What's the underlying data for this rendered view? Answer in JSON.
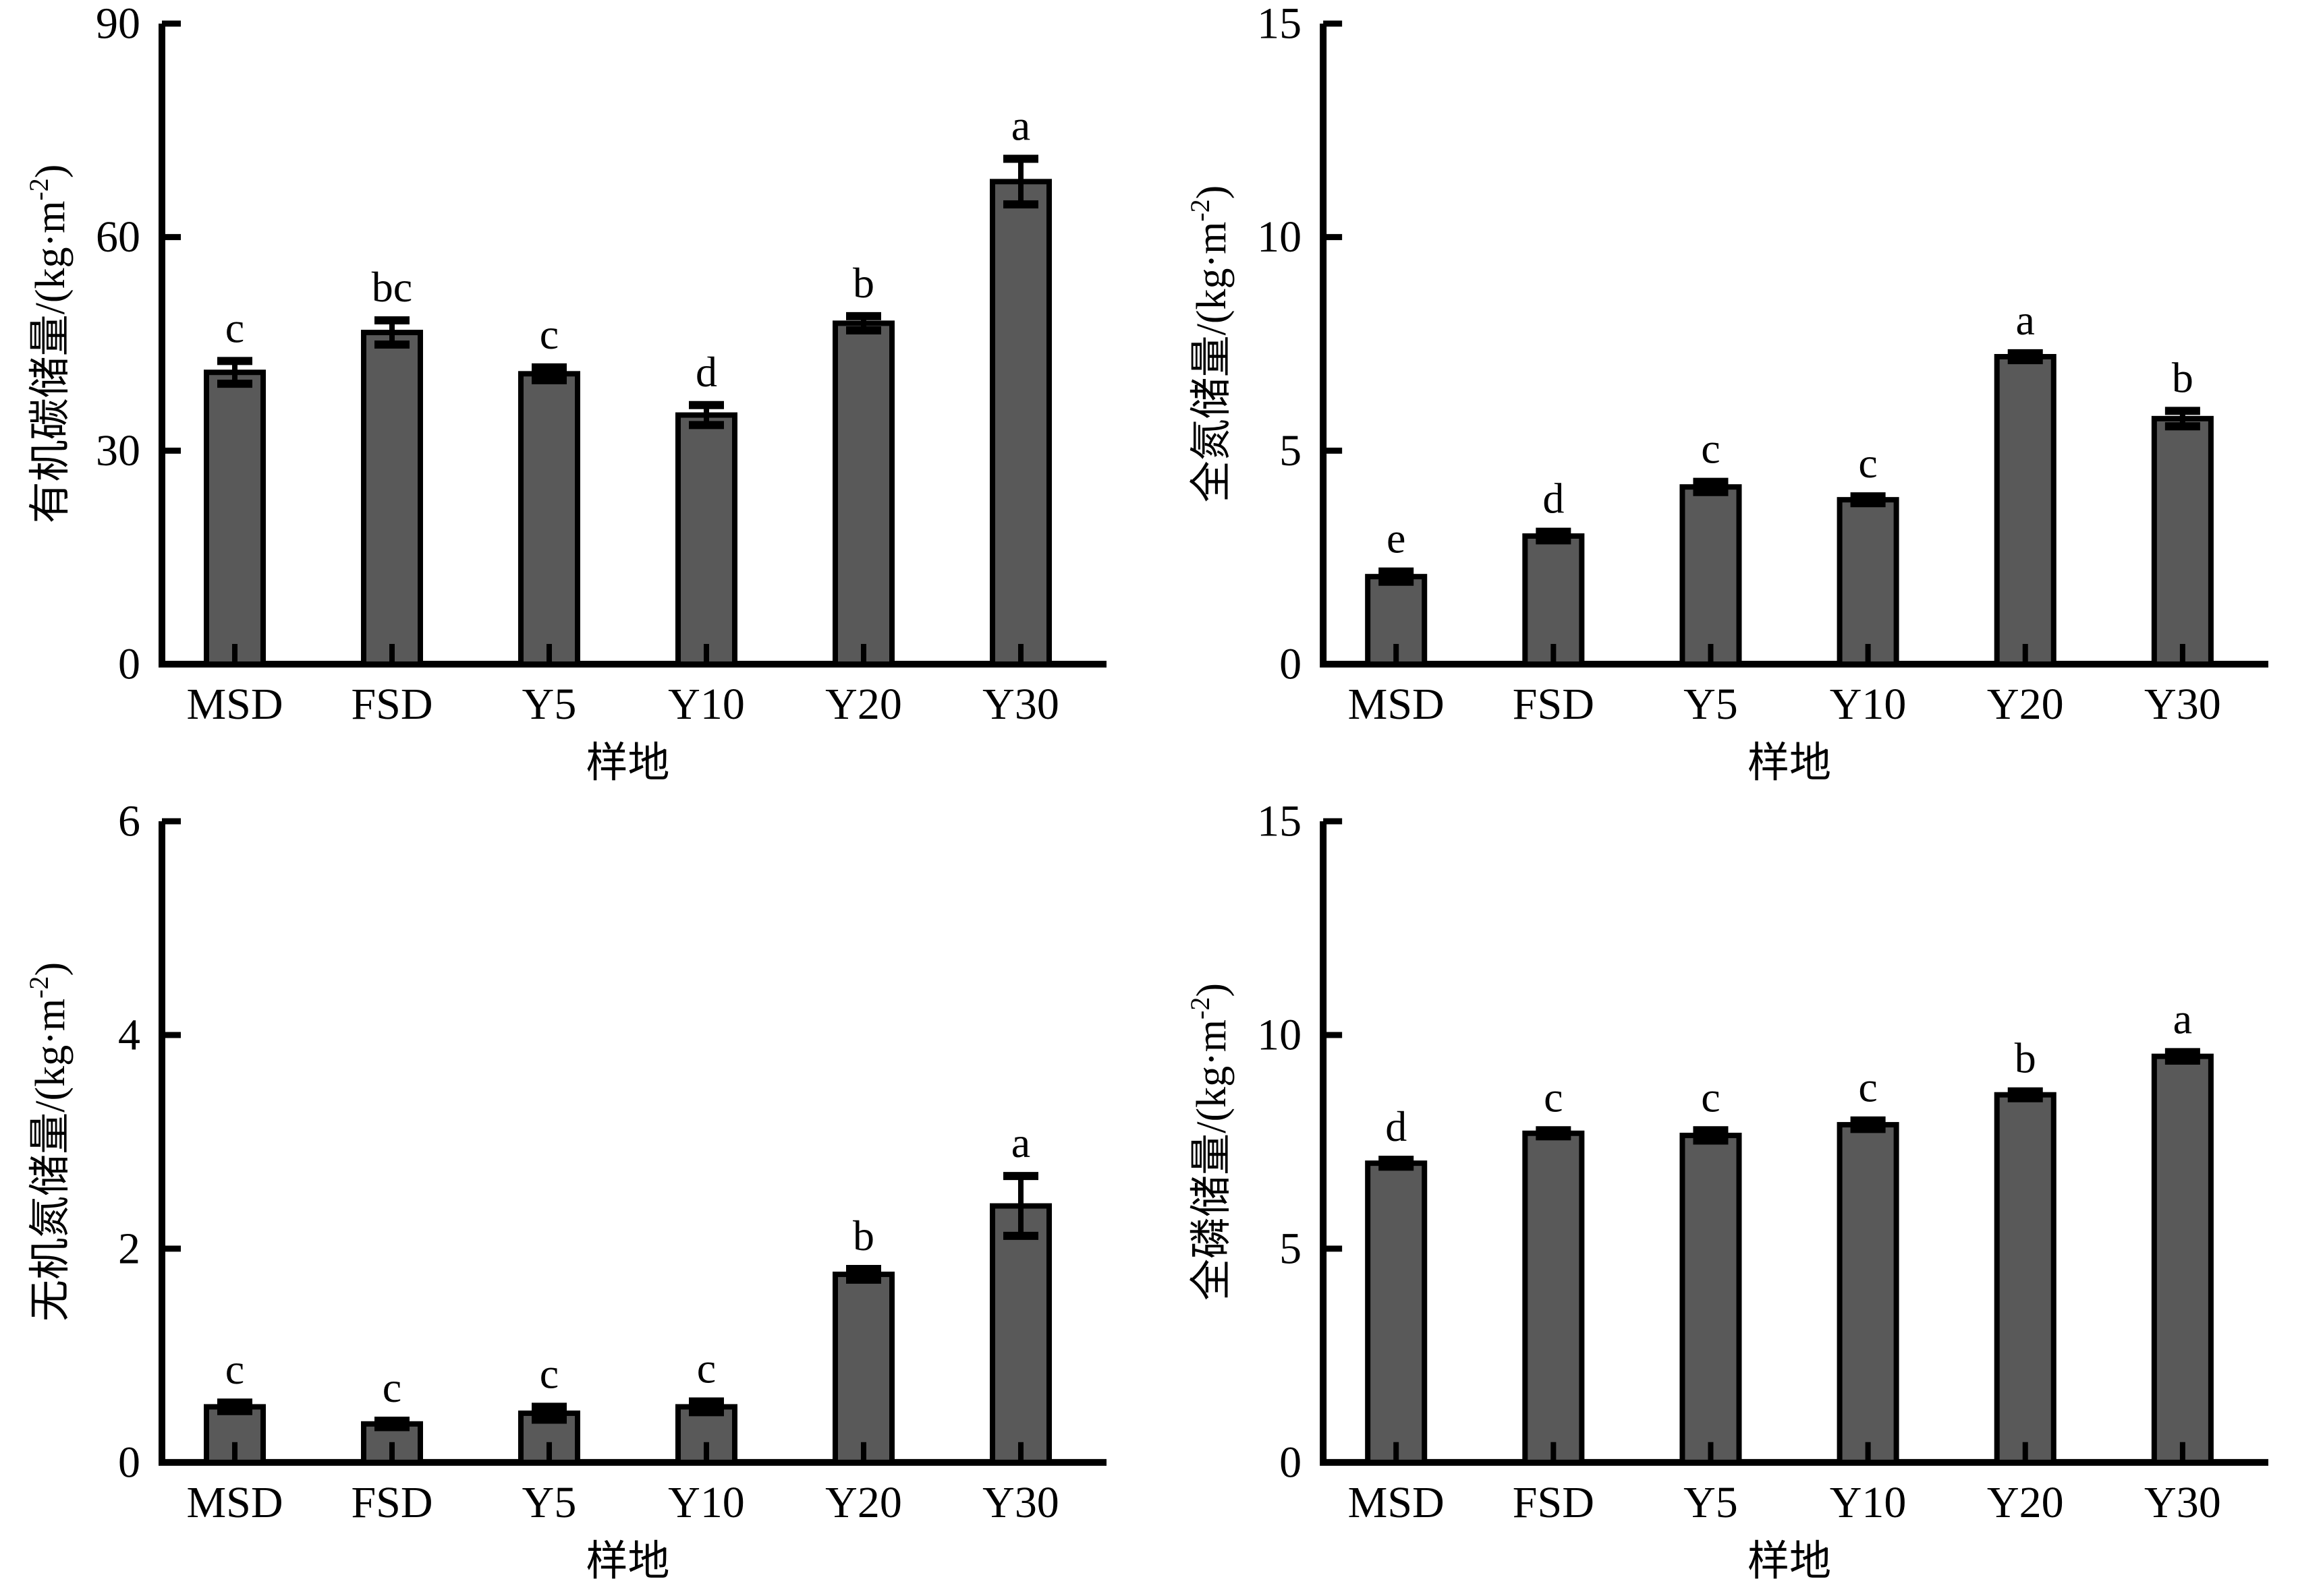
{
  "figure": {
    "background": "#ffffff",
    "bar_fill": "#595959",
    "bar_edge": "#000000",
    "axis_color": "#000000",
    "x_label": "样地",
    "categories": [
      "MSD",
      "FSD",
      "Y5",
      "Y10",
      "Y20",
      "Y30"
    ]
  },
  "chart_data": [
    {
      "type": "bar",
      "panel": "top-left",
      "title": "",
      "ylabel": "有机碳储量/(kg·m⁻²)",
      "ylabel_segments": [
        {
          "text": "有机碳储量/(kg·m",
          "style": "normal"
        },
        {
          "text": "-2",
          "style": "sup"
        },
        {
          "text": ")",
          "style": "normal"
        }
      ],
      "xlabel": "样地",
      "categories": [
        "MSD",
        "FSD",
        "Y5",
        "Y10",
        "Y20",
        "Y30"
      ],
      "values": [
        41.0,
        46.6,
        40.8,
        35.0,
        47.9,
        67.8
      ],
      "errors": [
        1.6,
        1.7,
        0.9,
        1.4,
        1.0,
        3.2
      ],
      "sig_letters": [
        "c",
        "bc",
        "c",
        "d",
        "b",
        "a"
      ],
      "ylim": [
        0,
        90
      ],
      "yticks": [
        0,
        30,
        60,
        90
      ],
      "grid": false,
      "legend": false
    },
    {
      "type": "bar",
      "panel": "top-right",
      "title": "",
      "ylabel": "全氮储量/(kg·m⁻²)",
      "ylabel_segments": [
        {
          "text": "全氮储量/(kg·m",
          "style": "normal"
        },
        {
          "text": "-2",
          "style": "sup"
        },
        {
          "text": ")",
          "style": "normal"
        }
      ],
      "xlabel": "样地",
      "categories": [
        "MSD",
        "FSD",
        "Y5",
        "Y10",
        "Y20",
        "Y30"
      ],
      "values": [
        2.05,
        3.0,
        4.15,
        3.85,
        7.2,
        5.75
      ],
      "errors": [
        0.12,
        0.1,
        0.12,
        0.08,
        0.08,
        0.18
      ],
      "sig_letters": [
        "e",
        "d",
        "c",
        "c",
        "a",
        "b"
      ],
      "ylim": [
        0,
        15
      ],
      "yticks": [
        0,
        5,
        10,
        15
      ],
      "grid": false,
      "legend": false
    },
    {
      "type": "bar",
      "panel": "bottom-left",
      "title": "",
      "ylabel": "无机氮储量/(kg·m⁻²)",
      "ylabel_segments": [
        {
          "text": "无机氮储量/(kg·m",
          "style": "normal"
        },
        {
          "text": "-2",
          "style": "sup"
        },
        {
          "text": ")",
          "style": "normal"
        }
      ],
      "xlabel": "样地",
      "categories": [
        "MSD",
        "FSD",
        "Y5",
        "Y10",
        "Y20",
        "Y30"
      ],
      "values": [
        0.52,
        0.36,
        0.46,
        0.52,
        1.76,
        2.4
      ],
      "errors": [
        0.04,
        0.03,
        0.06,
        0.05,
        0.05,
        0.28
      ],
      "sig_letters": [
        "c",
        "c",
        "c",
        "c",
        "b",
        "a"
      ],
      "ylim": [
        0,
        6
      ],
      "yticks": [
        0,
        2,
        4,
        6
      ],
      "grid": false,
      "legend": false
    },
    {
      "type": "bar",
      "panel": "bottom-right",
      "title": "",
      "ylabel": "全磷储量/(kg·m⁻²)",
      "ylabel_segments": [
        {
          "text": "全磷储量/(kg·m",
          "style": "normal"
        },
        {
          "text": "-2",
          "style": "sup"
        },
        {
          "text": ")",
          "style": "normal"
        }
      ],
      "xlabel": "样地",
      "categories": [
        "MSD",
        "FSD",
        "Y5",
        "Y10",
        "Y20",
        "Y30"
      ],
      "values": [
        7.0,
        7.7,
        7.65,
        7.9,
        8.6,
        9.5
      ],
      "errors": [
        0.08,
        0.07,
        0.12,
        0.1,
        0.08,
        0.1
      ],
      "sig_letters": [
        "d",
        "c",
        "c",
        "c",
        "b",
        "a"
      ],
      "ylim": [
        0,
        15
      ],
      "yticks": [
        0,
        5,
        10,
        15
      ],
      "grid": false,
      "legend": false
    }
  ]
}
